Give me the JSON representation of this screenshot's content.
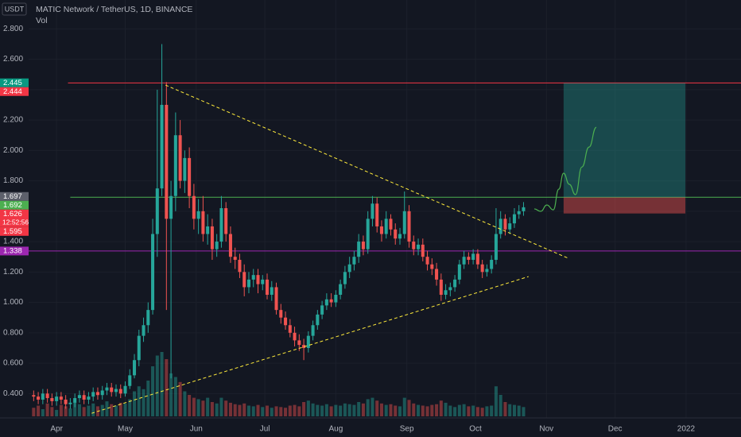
{
  "chart_data": {
    "type": "candlestick",
    "title": "MATIC Network / TetherUS, 1D, BINANCE",
    "currency": "USDT",
    "volume_label": "Vol",
    "x": [
      -10,
      -8,
      -6,
      -4,
      -2,
      0,
      2,
      4,
      6,
      8,
      10,
      12,
      14,
      16,
      18,
      20,
      22,
      24,
      26,
      28,
      30,
      32,
      34,
      36,
      38,
      40,
      42,
      44,
      46,
      48,
      50,
      52,
      54,
      56,
      58,
      60,
      62,
      64,
      66,
      68,
      70,
      72,
      74,
      76,
      78,
      80,
      82,
      84,
      86,
      88,
      90,
      92,
      94,
      96,
      98,
      100,
      102,
      104,
      106,
      108,
      110,
      112,
      114,
      116,
      118,
      120,
      122,
      124,
      126,
      128,
      130,
      132,
      134,
      136,
      138,
      140,
      142,
      144,
      146,
      148,
      150,
      152,
      154,
      156,
      158,
      160,
      162,
      164,
      166,
      168,
      170,
      172,
      174,
      176,
      178,
      180,
      182,
      184,
      186,
      188,
      190,
      192,
      194,
      196,
      198,
      200,
      202,
      204
    ],
    "xlim": [
      -12.2,
      299
    ],
    "xticks": [
      {
        "value": 0,
        "label": "Apr"
      },
      {
        "value": 30,
        "label": "May"
      },
      {
        "value": 61,
        "label": "Jun"
      },
      {
        "value": 91,
        "label": "Jul"
      },
      {
        "value": 122,
        "label": "Aug"
      },
      {
        "value": 153,
        "label": "Sep"
      },
      {
        "value": 183,
        "label": "Oct"
      },
      {
        "value": 214,
        "label": "Nov"
      },
      {
        "value": 244,
        "label": "Dec"
      },
      {
        "value": 275,
        "label": "2022"
      }
    ],
    "ylim": [
      0.25,
      2.99
    ],
    "yticks": [
      {
        "value": 0.4,
        "label": "0.400"
      },
      {
        "value": 0.6,
        "label": "0.600"
      },
      {
        "value": 0.8,
        "label": "0.800"
      },
      {
        "value": 1.0,
        "label": "1.000"
      },
      {
        "value": 1.2,
        "label": "1.200"
      },
      {
        "value": 1.4,
        "label": "1.400"
      },
      {
        "value": 1.6,
        "label": "1.600"
      },
      {
        "value": 1.8,
        "label": "1.800"
      },
      {
        "value": 2.0,
        "label": "2.000"
      },
      {
        "value": 2.2,
        "label": "2.200"
      },
      {
        "value": 2.4,
        "label": "2.400"
      },
      {
        "value": 2.6,
        "label": "2.600"
      },
      {
        "value": 2.8,
        "label": "2.800"
      }
    ],
    "grid": true,
    "up_color": "#26a69a",
    "down_color": "#ef5350",
    "open": [
      0.39,
      0.38,
      0.36,
      0.4,
      0.37,
      0.35,
      0.38,
      0.36,
      0.33,
      0.34,
      0.37,
      0.39,
      0.36,
      0.38,
      0.41,
      0.39,
      0.42,
      0.44,
      0.41,
      0.43,
      0.4,
      0.45,
      0.52,
      0.62,
      0.78,
      0.85,
      0.95,
      1.45,
      1.75,
      2.3,
      1.55,
      1.7,
      2.1,
      1.8,
      1.95,
      1.7,
      1.55,
      1.6,
      1.45,
      1.5,
      1.35,
      1.4,
      1.62,
      1.45,
      1.3,
      1.28,
      1.2,
      1.1,
      1.15,
      1.18,
      1.12,
      1.15,
      1.05,
      1.1,
      0.95,
      0.9,
      0.85,
      0.8,
      0.75,
      0.72,
      0.7,
      0.78,
      0.85,
      0.92,
      0.98,
      1.02,
      1.0,
      1.05,
      1.12,
      1.2,
      1.25,
      1.3,
      1.4,
      1.35,
      1.55,
      1.65,
      1.5,
      1.45,
      1.55,
      1.48,
      1.42,
      1.45,
      1.6,
      1.4,
      1.35,
      1.38,
      1.3,
      1.25,
      1.22,
      1.15,
      1.05,
      1.08,
      1.1,
      1.15,
      1.25,
      1.3,
      1.28,
      1.32,
      1.25,
      1.2,
      1.22,
      1.28,
      1.45,
      1.55,
      1.48,
      1.52,
      1.58,
      1.6
    ],
    "high": [
      0.42,
      0.41,
      0.43,
      0.43,
      0.4,
      0.41,
      0.41,
      0.39,
      0.37,
      0.4,
      0.42,
      0.42,
      0.41,
      0.44,
      0.44,
      0.45,
      0.47,
      0.47,
      0.46,
      0.46,
      0.48,
      0.56,
      0.66,
      0.82,
      0.9,
      1.0,
      1.55,
      2.4,
      2.7,
      2.45,
      1.8,
      2.25,
      2.2,
      2.0,
      2.02,
      1.78,
      1.68,
      1.7,
      1.58,
      1.55,
      1.45,
      1.7,
      1.66,
      1.5,
      1.36,
      1.32,
      1.25,
      1.2,
      1.22,
      1.22,
      1.18,
      1.19,
      1.14,
      1.13,
      0.99,
      0.94,
      0.89,
      0.84,
      0.79,
      0.76,
      0.81,
      0.88,
      0.95,
      1.01,
      1.06,
      1.06,
      1.08,
      1.15,
      1.24,
      1.3,
      1.34,
      1.45,
      1.44,
      1.6,
      1.7,
      1.69,
      1.54,
      1.6,
      1.58,
      1.52,
      1.49,
      1.73,
      1.64,
      1.44,
      1.42,
      1.42,
      1.34,
      1.29,
      1.26,
      1.19,
      1.12,
      1.13,
      1.18,
      1.28,
      1.34,
      1.33,
      1.35,
      1.35,
      1.28,
      1.25,
      1.31,
      1.62,
      1.6,
      1.58,
      1.56,
      1.62,
      1.64,
      1.66
    ],
    "low": [
      0.35,
      0.33,
      0.33,
      0.34,
      0.32,
      0.32,
      0.33,
      0.3,
      0.3,
      0.31,
      0.34,
      0.33,
      0.33,
      0.35,
      0.36,
      0.36,
      0.39,
      0.38,
      0.38,
      0.37,
      0.38,
      0.43,
      0.5,
      0.58,
      0.74,
      0.8,
      0.92,
      1.3,
      1.7,
      0.95,
      0.5,
      1.6,
      1.75,
      1.72,
      1.62,
      1.48,
      1.45,
      1.4,
      1.38,
      1.28,
      1.3,
      1.36,
      1.4,
      1.26,
      1.22,
      1.16,
      1.04,
      1.06,
      1.1,
      1.06,
      1.08,
      1.02,
      1.01,
      0.92,
      0.86,
      0.82,
      0.77,
      0.71,
      0.68,
      0.62,
      0.67,
      0.75,
      0.82,
      0.89,
      0.95,
      0.97,
      0.97,
      1.02,
      1.09,
      1.16,
      1.21,
      1.26,
      1.31,
      1.32,
      1.5,
      1.46,
      1.4,
      1.42,
      1.44,
      1.38,
      1.38,
      1.42,
      1.36,
      1.31,
      1.31,
      1.27,
      1.21,
      1.18,
      1.11,
      1.01,
      1.02,
      1.04,
      1.07,
      1.12,
      1.22,
      1.25,
      1.25,
      1.22,
      1.16,
      1.17,
      1.19,
      1.25,
      1.42,
      1.44,
      1.45,
      1.49,
      1.55,
      1.57
    ],
    "close": [
      0.38,
      0.36,
      0.4,
      0.37,
      0.35,
      0.38,
      0.36,
      0.33,
      0.34,
      0.37,
      0.39,
      0.36,
      0.38,
      0.41,
      0.39,
      0.42,
      0.44,
      0.41,
      0.43,
      0.4,
      0.45,
      0.52,
      0.62,
      0.78,
      0.85,
      0.95,
      1.45,
      1.75,
      2.3,
      1.55,
      1.7,
      2.1,
      1.8,
      1.95,
      1.7,
      1.55,
      1.6,
      1.45,
      1.5,
      1.35,
      1.4,
      1.62,
      1.45,
      1.3,
      1.28,
      1.2,
      1.1,
      1.15,
      1.18,
      1.12,
      1.15,
      1.05,
      1.1,
      0.95,
      0.9,
      0.85,
      0.8,
      0.75,
      0.72,
      0.7,
      0.78,
      0.85,
      0.92,
      0.98,
      1.02,
      1.0,
      1.05,
      1.12,
      1.2,
      1.25,
      1.3,
      1.4,
      1.35,
      1.55,
      1.65,
      1.5,
      1.45,
      1.55,
      1.48,
      1.42,
      1.45,
      1.6,
      1.4,
      1.35,
      1.38,
      1.3,
      1.25,
      1.22,
      1.15,
      1.05,
      1.08,
      1.1,
      1.15,
      1.25,
      1.3,
      1.28,
      1.32,
      1.25,
      1.2,
      1.22,
      1.28,
      1.45,
      1.55,
      1.48,
      1.52,
      1.58,
      1.6,
      1.626
    ],
    "volume": [
      120,
      150,
      100,
      180,
      130,
      90,
      160,
      140,
      110,
      200,
      170,
      130,
      150,
      180,
      140,
      160,
      210,
      170,
      150,
      190,
      180,
      240,
      350,
      420,
      380,
      500,
      700,
      850,
      900,
      800,
      600,
      550,
      480,
      350,
      300,
      260,
      240,
      220,
      260,
      200,
      180,
      260,
      220,
      190,
      170,
      160,
      180,
      150,
      140,
      160,
      130,
      150,
      120,
      140,
      130,
      120,
      150,
      160,
      140,
      200,
      220,
      180,
      160,
      150,
      170,
      140,
      160,
      150,
      180,
      170,
      160,
      200,
      180,
      240,
      260,
      220,
      180,
      160,
      170,
      150,
      140,
      260,
      230,
      180,
      160,
      150,
      140,
      160,
      170,
      220,
      190,
      150,
      130,
      160,
      170,
      140,
      150,
      130,
      120,
      140,
      150,
      420,
      300,
      200,
      170,
      160,
      150,
      130
    ],
    "vlim": [
      0,
      1000
    ],
    "levels": [
      {
        "price": 2.444,
        "start": 5,
        "color": "#f23645"
      },
      {
        "price": 1.692,
        "start": 6,
        "color": "#4caf50"
      },
      {
        "price": 1.338,
        "start": -12.2,
        "color": "#9c27b0"
      }
    ],
    "trendlines": [
      {
        "x": [
          47.6,
          223.6
        ],
        "y": [
          2.43,
          1.29
        ],
        "color": "#ffeb3b"
      },
      {
        "x": [
          15.3,
          206.2
        ],
        "y": [
          0.27,
          1.17
        ],
        "color": "#ffeb3b"
      }
    ],
    "position": {
      "start": 221.5,
      "end": 274.7,
      "entry": 1.692,
      "target": 2.444,
      "stop": 1.585,
      "profit_color": "#26a69a",
      "loss_color": "#ef5350"
    },
    "projection": {
      "x": [
        208.7,
        211.5,
        214.2,
        217,
        219.4,
        221.5,
        224,
        226.7,
        229.5,
        232.6,
        235.8
      ],
      "y": [
        1.615,
        1.599,
        1.641,
        1.609,
        1.745,
        1.85,
        1.777,
        1.709,
        1.891,
        2.022,
        2.152
      ],
      "color": "#4caf50"
    },
    "price_labels": [
      {
        "value": 2.445,
        "color": "#089981"
      },
      {
        "value": 2.444,
        "color": "#f23645"
      },
      {
        "value": 1.697,
        "color": "#5d606b"
      },
      {
        "value": 1.692,
        "color": "#4caf50"
      },
      {
        "value": 1.626,
        "color": "#f23645",
        "countdown": "12:52:56"
      },
      {
        "value": 1.595,
        "color": "#f23645"
      },
      {
        "value": 1.338,
        "color": "#9c27b0"
      }
    ]
  }
}
